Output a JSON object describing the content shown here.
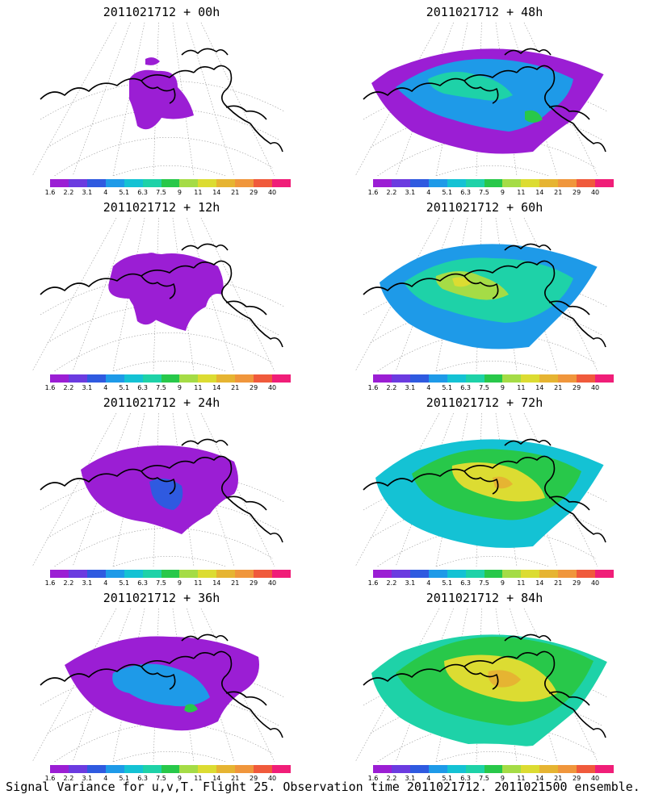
{
  "caption": "Signal Variance for u,v,T. Flight 25. Observation time 2011021712. 2011021500 ensemble.",
  "colorbar": {
    "labels": [
      "1.6",
      "2.2",
      "3.1",
      "4",
      "5.1",
      "6.3",
      "7.5",
      "9",
      "11",
      "14",
      "21",
      "29",
      "40"
    ],
    "colors": [
      "#9b1ed4",
      "#6b3be0",
      "#2f5ae0",
      "#1e9ae8",
      "#14c2d4",
      "#1ed2a8",
      "#28c84a",
      "#a5dc46",
      "#dcdc32",
      "#e6b432",
      "#f0963c",
      "#f05a3c",
      "#f01e78"
    ]
  },
  "panels": [
    {
      "title": "2011021712 + 00h",
      "level": 0
    },
    {
      "title": "2011021712 + 48h",
      "level": 4
    },
    {
      "title": "2011021712 + 12h",
      "level": 1
    },
    {
      "title": "2011021712 + 60h",
      "level": 5
    },
    {
      "title": "2011021712 + 24h",
      "level": 2
    },
    {
      "title": "2011021712 + 72h",
      "level": 6
    },
    {
      "title": "2011021712 + 36h",
      "level": 3
    },
    {
      "title": "2011021712 + 84h",
      "level": 7
    }
  ]
}
